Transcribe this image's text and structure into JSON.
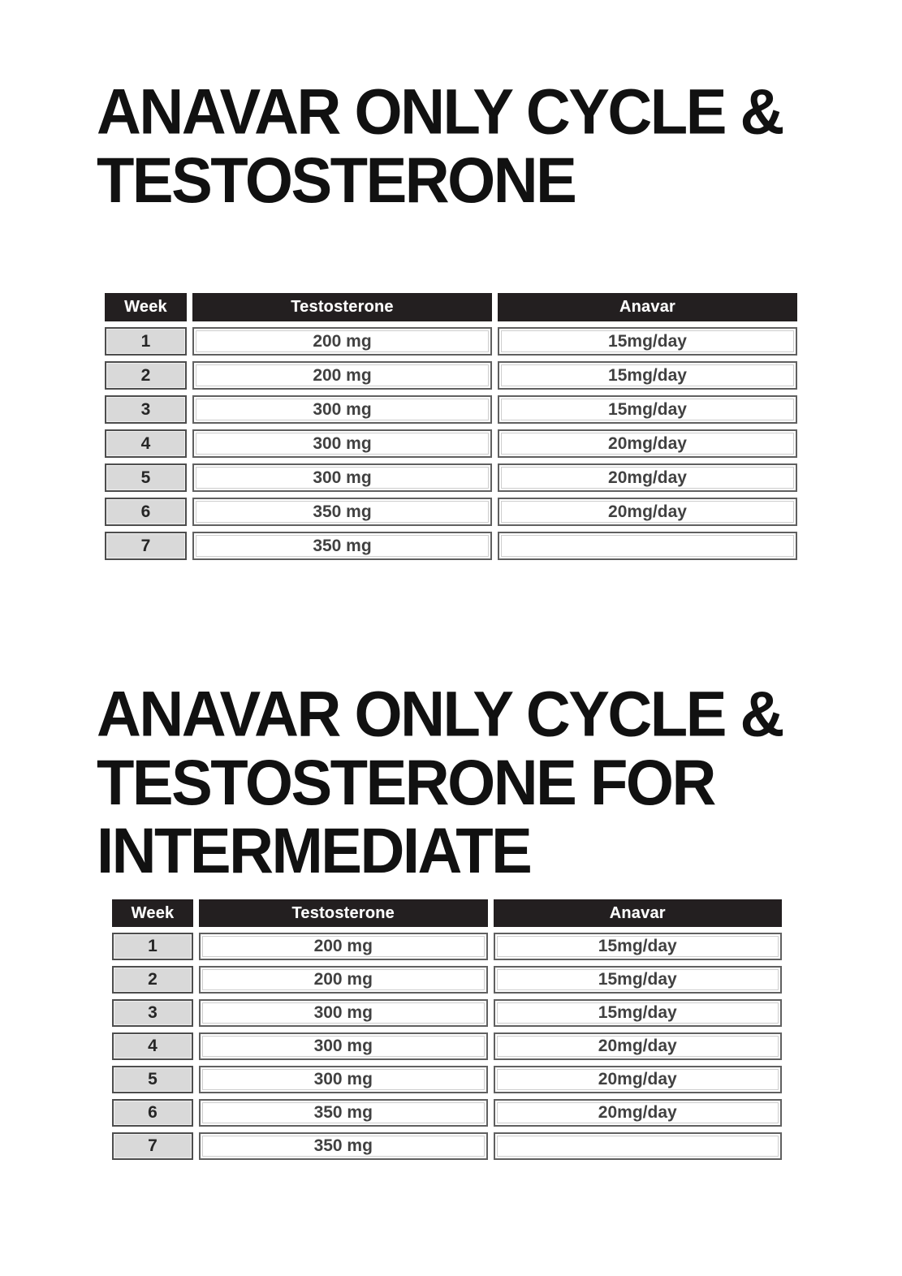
{
  "title1": {
    "text": "ANAVAR ONLY CYCLE & TESTOSTERONE",
    "lines": [
      "ANAVAR ONLY CYCLE &",
      "TESTOSTERONE"
    ]
  },
  "title2": {
    "text": "ANAVAR ONLY CYCLE & TESTOSTERONE FOR INTERMEDIATE",
    "lines": [
      "ANAVAR ONLY CYCLE &",
      "TESTOSTERONE FOR",
      "INTERMEDIATE"
    ]
  },
  "table1": {
    "headers": [
      "Week",
      "Testosterone",
      "Anavar"
    ],
    "rows": [
      [
        "1",
        "200 mg",
        "15mg/day"
      ],
      [
        "2",
        "200 mg",
        "15mg/day"
      ],
      [
        "3",
        "300 mg",
        "15mg/day"
      ],
      [
        "4",
        "300 mg",
        "20mg/day"
      ],
      [
        "5",
        "300 mg",
        "20mg/day"
      ],
      [
        "6",
        "350 mg",
        "20mg/day"
      ],
      [
        "7",
        "350 mg",
        ""
      ]
    ]
  },
  "table2": {
    "headers": [
      "Week",
      "Testosterone",
      "Anavar"
    ],
    "rows": [
      [
        "1",
        "200 mg",
        "15mg/day"
      ],
      [
        "2",
        "200 mg",
        "15mg/day"
      ],
      [
        "3",
        "300 mg",
        "15mg/day"
      ],
      [
        "4",
        "300 mg",
        "20mg/day"
      ],
      [
        "5",
        "300 mg",
        "20mg/day"
      ],
      [
        "6",
        "350 mg",
        "20mg/day"
      ],
      [
        "7",
        "350 mg",
        ""
      ]
    ]
  },
  "colors": {
    "page_bg": "#ffffff",
    "title_text": "#111111",
    "header_bg": "#231f20",
    "header_text": "#ffffff",
    "week_cell_bg": "#d9d9d9",
    "week_border": "#4d4d4d",
    "week_text": "#262626",
    "cell_bg": "#ffffff",
    "cell_border": "#606060",
    "cell_text": "#414141"
  }
}
